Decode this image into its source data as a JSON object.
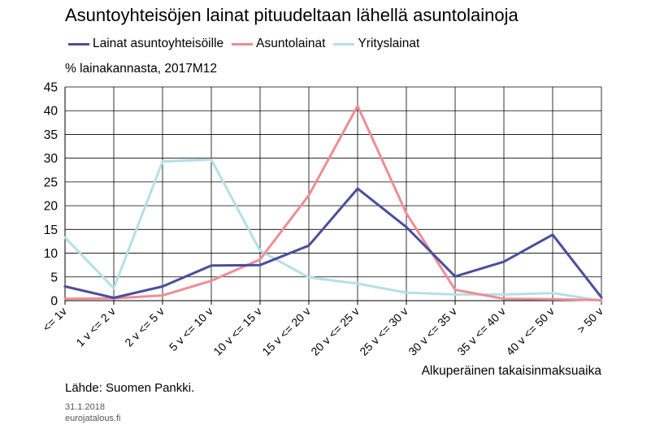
{
  "chart_data": {
    "type": "line",
    "title": "Asuntoyhteisöjen lainat pituudeltaan lähellä asuntolainoja",
    "subtitle": "% lainakannasta, 2017M12",
    "xlabel": "Alkuperäinen takaisinmaksuaika",
    "ylabel": "",
    "ylim": [
      0,
      45
    ],
    "yticks": [
      0,
      5,
      10,
      15,
      20,
      25,
      30,
      35,
      40,
      45
    ],
    "grid": true,
    "legend_position": "top-left",
    "categories": [
      "<= 1v",
      "1 v <= 2 v",
      "2 v <= 5 v",
      "5 v <= 10 v",
      "10 v <= 15 v",
      "15 v <= 20 v",
      "20 v <= 25 v",
      "25 v <= 30 v",
      "30 v <= 35 v",
      "35 v <= 40 v",
      "40 v <= 50 v",
      "> 50 v"
    ],
    "series": [
      {
        "name": "Lainat asuntoyhteisöille",
        "color": "#4a4e9c",
        "values": [
          3.0,
          0.6,
          3.0,
          7.4,
          7.5,
          11.6,
          23.6,
          15.5,
          5.1,
          8.2,
          13.9,
          0.7
        ]
      },
      {
        "name": "Asuntolainat",
        "color": "#ee8d95",
        "values": [
          0.4,
          0.5,
          1.1,
          4.2,
          8.7,
          22.2,
          41.0,
          18.4,
          2.3,
          0.4,
          0.3,
          0.1
        ]
      },
      {
        "name": "Yrityslainat",
        "color": "#b5e0e4",
        "values": [
          13.3,
          2.6,
          29.3,
          29.7,
          10.5,
          4.9,
          3.6,
          1.7,
          1.3,
          1.3,
          1.6,
          0.0
        ]
      }
    ]
  },
  "source": "Lähde: Suomen Pankki.",
  "date": "31.1.2018",
  "site": "eurojatalous.fi"
}
